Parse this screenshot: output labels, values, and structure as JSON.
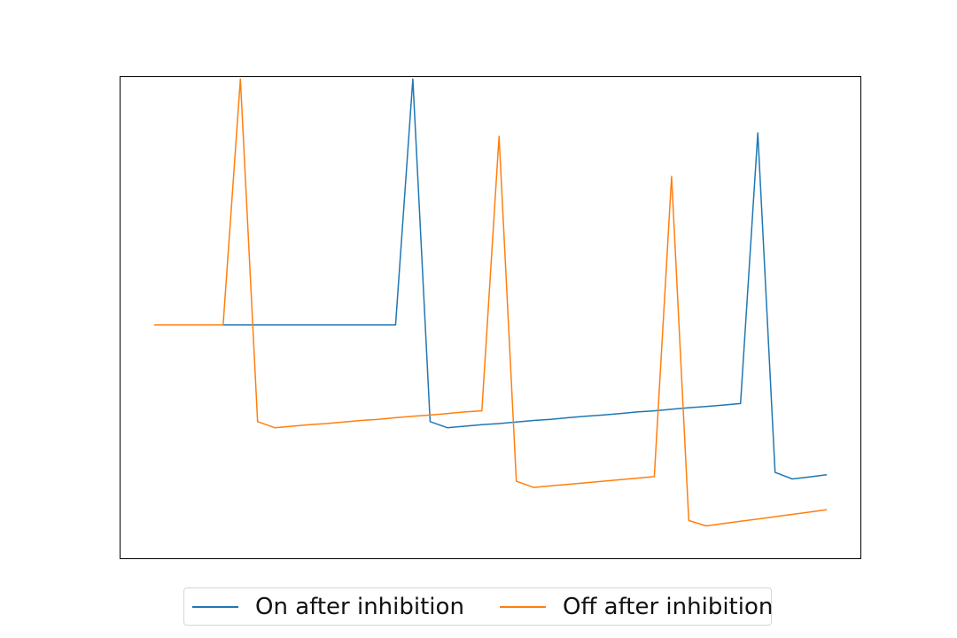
{
  "chart_data": {
    "type": "line",
    "title": "",
    "xlabel": "",
    "ylabel": "",
    "axes_visible": false,
    "grid": false,
    "legend_placement": "bottom-center",
    "xlim": [
      -1.95,
      40.95
    ],
    "ylim": [
      -80,
      45
    ],
    "x": [
      0,
      1,
      2,
      3,
      4,
      5,
      6,
      7,
      8,
      9,
      10,
      11,
      12,
      13,
      14,
      15,
      16,
      17,
      18,
      19,
      20,
      21,
      22,
      23,
      24,
      25,
      26,
      27,
      28,
      29,
      30,
      31,
      32,
      33,
      34,
      35,
      36,
      37,
      38,
      39
    ],
    "series": [
      {
        "name": "On after inhibition",
        "color": "#1f77b4",
        "values": [
          -19.4,
          -19.4,
          -19.4,
          -19.4,
          -19.4,
          -19.4,
          -19.4,
          -19.4,
          -19.4,
          -19.4,
          -19.4,
          -19.4,
          -19.4,
          -19.4,
          -19.4,
          44.5,
          -44.5,
          -46.1,
          -45.7,
          -45.3,
          -45.0,
          -44.6,
          -44.2,
          -43.9,
          -43.5,
          -43.1,
          -42.8,
          -42.4,
          -42.0,
          -41.7,
          -41.3,
          -40.9,
          -40.6,
          -40.2,
          -39.8,
          30.5,
          -57.7,
          -59.4,
          -58.9,
          -58.3
        ]
      },
      {
        "name": "Off after inhibition",
        "color": "#ff7f0e",
        "values": [
          -19.4,
          -19.4,
          -19.4,
          -19.4,
          -19.4,
          44.5,
          -44.5,
          -46.1,
          -45.7,
          -45.3,
          -45.0,
          -44.6,
          -44.2,
          -43.9,
          -43.5,
          -43.1,
          -42.8,
          -42.4,
          -42.0,
          -41.7,
          29.6,
          -60.0,
          -61.6,
          -61.2,
          -60.8,
          -60.4,
          -60.0,
          -59.6,
          -59.2,
          -58.8,
          19.2,
          -70.2,
          -71.6,
          -71.0,
          -70.4,
          -69.8,
          -69.2,
          -68.6,
          -68.0,
          -67.4
        ]
      }
    ]
  }
}
